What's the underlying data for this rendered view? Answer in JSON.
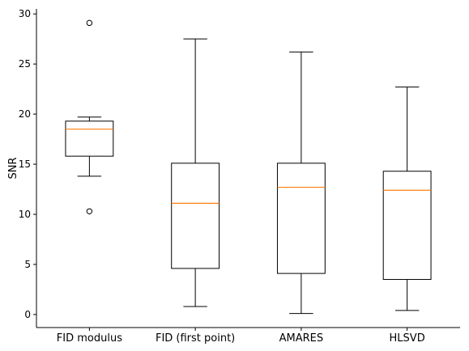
{
  "chart_data": {
    "type": "box",
    "ylabel": "SNR",
    "ylim": [
      -1.3,
      30.5
    ],
    "yticks": [
      0,
      5,
      10,
      15,
      20,
      25,
      30
    ],
    "categories": [
      "FID modulus",
      "FID (first point)",
      "AMARES",
      "HLSVD"
    ],
    "boxes": [
      {
        "whisker_low": 13.8,
        "q1": 15.8,
        "median": 18.5,
        "q3": 19.3,
        "whisker_high": 19.7,
        "fliers": [
          29.1,
          10.3
        ]
      },
      {
        "whisker_low": 0.8,
        "q1": 4.6,
        "median": 11.1,
        "q3": 15.1,
        "whisker_high": 27.5,
        "fliers": []
      },
      {
        "whisker_low": 0.1,
        "q1": 4.1,
        "median": 12.7,
        "q3": 15.1,
        "whisker_high": 26.2,
        "fliers": []
      },
      {
        "whisker_low": 0.4,
        "q1": 3.5,
        "median": 12.4,
        "q3": 14.3,
        "whisker_high": 22.7,
        "fliers": []
      }
    ],
    "median_color": "#ff7f0e",
    "grid": false
  }
}
